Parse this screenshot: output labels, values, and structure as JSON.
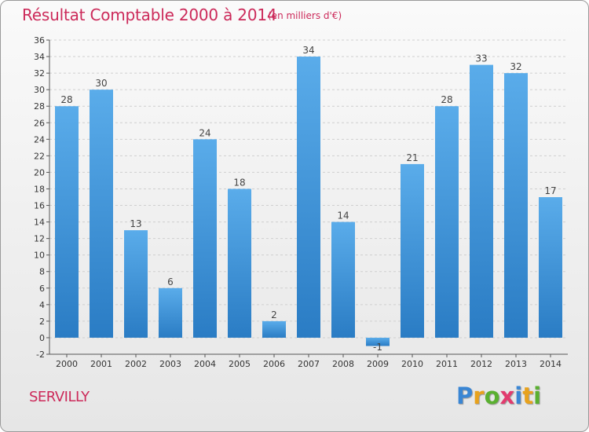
{
  "chart_data": {
    "type": "bar",
    "title": "Résultat Comptable 2000 à 2014",
    "subtitle": "(en milliers d'€)",
    "categories": [
      "2000",
      "2001",
      "2002",
      "2003",
      "2004",
      "2005",
      "2006",
      "2007",
      "2008",
      "2009",
      "2010",
      "2011",
      "2012",
      "2013",
      "2014"
    ],
    "values": [
      28,
      30,
      13,
      6,
      24,
      18,
      2,
      34,
      14,
      -1,
      21,
      28,
      33,
      32,
      17
    ],
    "ylim": [
      -2,
      36
    ],
    "yticks": [
      -2,
      0,
      2,
      4,
      6,
      8,
      10,
      12,
      14,
      16,
      18,
      20,
      22,
      24,
      26,
      28,
      30,
      32,
      34,
      36
    ],
    "grid": true,
    "bar_color": "#4a9fe0"
  },
  "place_name": "SERVILLY",
  "logo": {
    "letters": [
      "P",
      "r",
      "o",
      "x",
      "i",
      "t",
      "i"
    ],
    "colors": [
      "#3a86d4",
      "#e8a21c",
      "#5ab030",
      "#e23b6e",
      "#3a86d4",
      "#e8a21c",
      "#5ab030"
    ]
  }
}
